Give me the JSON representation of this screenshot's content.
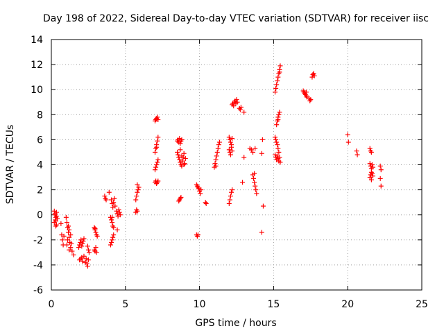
{
  "chart_data": {
    "type": "scatter",
    "title": "Day 198 of 2022, Sidereal Day-to-day VTEC variation (SDTVAR) for receiver iisc",
    "xlabel": "GPS time / hours",
    "ylabel": "SDTVAR / TECUs",
    "xlim": [
      0,
      25
    ],
    "ylim": [
      -6,
      14
    ],
    "xticks": [
      0,
      5,
      10,
      15,
      20,
      25
    ],
    "yticks": [
      -6,
      -4,
      -2,
      0,
      2,
      4,
      6,
      8,
      10,
      12,
      14
    ],
    "grid": true,
    "marker": "+",
    "color": "#ff0000",
    "series": [
      {
        "name": "SDTVAR",
        "points": [
          [
            0.2,
            0.3
          ],
          [
            0.25,
            0.1
          ],
          [
            0.3,
            -0.2
          ],
          [
            0.3,
            -0.5
          ],
          [
            0.35,
            -0.8
          ],
          [
            0.2,
            -0.6
          ],
          [
            0.25,
            0.0
          ],
          [
            0.35,
            0.2
          ],
          [
            0.4,
            -0.3
          ],
          [
            0.3,
            -0.9
          ],
          [
            0.35,
            -0.1
          ],
          [
            0.28,
            -0.4
          ],
          [
            0.65,
            -0.7
          ],
          [
            0.7,
            -1.6
          ],
          [
            0.75,
            -2.0
          ],
          [
            0.8,
            -2.4
          ],
          [
            0.85,
            -1.7
          ],
          [
            1.0,
            -0.2
          ],
          [
            1.05,
            -0.6
          ],
          [
            1.1,
            -1.0
          ],
          [
            1.15,
            -1.4
          ],
          [
            1.2,
            -1.8
          ],
          [
            1.25,
            -2.2
          ],
          [
            1.3,
            -2.6
          ],
          [
            1.1,
            -2.0
          ],
          [
            1.2,
            -1.2
          ],
          [
            1.15,
            -0.9
          ],
          [
            1.3,
            -1.6
          ],
          [
            1.05,
            -2.4
          ],
          [
            1.2,
            -2.8
          ],
          [
            1.4,
            -2.9
          ],
          [
            1.5,
            -3.2
          ],
          [
            1.35,
            -2.3
          ],
          [
            1.85,
            -2.6
          ],
          [
            1.9,
            -2.4
          ],
          [
            1.95,
            -2.2
          ],
          [
            2.0,
            -2.0
          ],
          [
            2.1,
            -2.3
          ],
          [
            2.15,
            -2.1
          ],
          [
            2.2,
            -1.9
          ],
          [
            2.05,
            -2.5
          ],
          [
            1.9,
            -3.6
          ],
          [
            2.0,
            -3.5
          ],
          [
            2.05,
            -3.4
          ],
          [
            2.1,
            -3.7
          ],
          [
            2.2,
            -3.3
          ],
          [
            2.3,
            -3.8
          ],
          [
            2.4,
            -3.9
          ],
          [
            2.45,
            -4.1
          ],
          [
            2.5,
            -3.6
          ],
          [
            2.35,
            -3.5
          ],
          [
            2.45,
            -2.5
          ],
          [
            2.5,
            -2.8
          ],
          [
            2.55,
            -3.0
          ],
          [
            2.9,
            -2.8
          ],
          [
            2.95,
            -2.9
          ],
          [
            3.0,
            -2.6
          ],
          [
            3.05,
            -3.0
          ],
          [
            2.9,
            -1.0
          ],
          [
            2.95,
            -1.2
          ],
          [
            3.0,
            -1.4
          ],
          [
            3.05,
            -1.6
          ],
          [
            3.1,
            -1.7
          ],
          [
            2.95,
            -1.1
          ],
          [
            3.6,
            1.5
          ],
          [
            3.65,
            1.3
          ],
          [
            3.7,
            1.2
          ],
          [
            3.9,
            1.8
          ],
          [
            4.05,
            1.2
          ],
          [
            4.1,
            0.9
          ],
          [
            4.15,
            0.6
          ],
          [
            4.2,
            1.0
          ],
          [
            4.25,
            1.3
          ],
          [
            4.3,
            0.7
          ],
          [
            4.0,
            -0.2
          ],
          [
            4.05,
            -0.4
          ],
          [
            4.1,
            -0.6
          ],
          [
            4.15,
            -0.9
          ],
          [
            4.2,
            -1.0
          ],
          [
            4.1,
            -0.2
          ],
          [
            4.0,
            -2.4
          ],
          [
            4.05,
            -2.2
          ],
          [
            4.1,
            -2.0
          ],
          [
            4.15,
            -1.8
          ],
          [
            4.2,
            -1.6
          ],
          [
            4.4,
            0.3
          ],
          [
            4.45,
            0.1
          ],
          [
            4.5,
            -0.1
          ],
          [
            4.55,
            0.4
          ],
          [
            4.6,
            0.2
          ],
          [
            4.65,
            0.0
          ],
          [
            4.45,
            -1.2
          ],
          [
            5.7,
            0.2
          ],
          [
            5.75,
            0.4
          ],
          [
            5.8,
            0.3
          ],
          [
            5.7,
            1.2
          ],
          [
            5.75,
            1.5
          ],
          [
            5.8,
            1.8
          ],
          [
            5.85,
            2.0
          ],
          [
            5.9,
            2.2
          ],
          [
            5.8,
            2.4
          ],
          [
            7.0,
            2.6
          ],
          [
            7.05,
            2.7
          ],
          [
            7.1,
            2.5
          ],
          [
            7.15,
            2.6
          ],
          [
            7.2,
            2.7
          ],
          [
            7.0,
            3.6
          ],
          [
            7.05,
            3.8
          ],
          [
            7.1,
            4.0
          ],
          [
            7.15,
            4.2
          ],
          [
            7.2,
            4.4
          ],
          [
            7.0,
            5.0
          ],
          [
            7.05,
            5.3
          ],
          [
            7.1,
            5.6
          ],
          [
            7.15,
            5.9
          ],
          [
            7.2,
            6.2
          ],
          [
            7.1,
            5.4
          ],
          [
            7.0,
            7.5
          ],
          [
            7.05,
            7.6
          ],
          [
            7.1,
            7.7
          ],
          [
            7.15,
            7.8
          ],
          [
            7.2,
            7.6
          ],
          [
            8.5,
            5.9
          ],
          [
            8.55,
            6.0
          ],
          [
            8.6,
            5.8
          ],
          [
            8.65,
            6.1
          ],
          [
            8.7,
            5.7
          ],
          [
            8.75,
            5.9
          ],
          [
            8.8,
            6.0
          ],
          [
            8.5,
            5.0
          ],
          [
            8.55,
            4.8
          ],
          [
            8.6,
            4.6
          ],
          [
            8.65,
            4.4
          ],
          [
            8.7,
            4.2
          ],
          [
            8.75,
            4.0
          ],
          [
            8.8,
            3.9
          ],
          [
            8.85,
            4.3
          ],
          [
            8.9,
            4.6
          ],
          [
            8.95,
            4.9
          ],
          [
            9.0,
            4.1
          ],
          [
            9.05,
            4.5
          ],
          [
            8.7,
            5.2
          ],
          [
            8.8,
            4.7
          ],
          [
            8.95,
            4.0
          ],
          [
            8.6,
            1.1
          ],
          [
            8.65,
            1.2
          ],
          [
            8.7,
            1.3
          ],
          [
            8.75,
            1.4
          ],
          [
            9.8,
            2.4
          ],
          [
            9.85,
            2.3
          ],
          [
            9.9,
            2.2
          ],
          [
            9.95,
            2.1
          ],
          [
            10.0,
            1.9
          ],
          [
            10.05,
            1.7
          ],
          [
            10.1,
            2.0
          ],
          [
            9.8,
            -1.6
          ],
          [
            9.85,
            -1.7
          ],
          [
            9.9,
            -1.6
          ],
          [
            10.4,
            1.0
          ],
          [
            10.45,
            0.9
          ],
          [
            11.0,
            3.8
          ],
          [
            11.05,
            4.1
          ],
          [
            11.1,
            4.4
          ],
          [
            11.15,
            4.7
          ],
          [
            11.2,
            5.0
          ],
          [
            11.25,
            5.3
          ],
          [
            11.3,
            5.6
          ],
          [
            11.35,
            5.8
          ],
          [
            11.1,
            3.9
          ],
          [
            12.0,
            6.2
          ],
          [
            12.05,
            6.0
          ],
          [
            12.1,
            5.8
          ],
          [
            12.15,
            5.6
          ],
          [
            12.2,
            6.1
          ],
          [
            12.0,
            5.2
          ],
          [
            12.05,
            5.0
          ],
          [
            12.1,
            4.8
          ],
          [
            12.15,
            5.4
          ],
          [
            12.2,
            5.1
          ],
          [
            12.0,
            0.9
          ],
          [
            12.05,
            1.2
          ],
          [
            12.1,
            1.5
          ],
          [
            12.15,
            1.8
          ],
          [
            12.2,
            2.0
          ],
          [
            12.2,
            8.8
          ],
          [
            12.25,
            8.9
          ],
          [
            12.3,
            8.7
          ],
          [
            12.35,
            9.0
          ],
          [
            12.4,
            9.1
          ],
          [
            12.45,
            8.9
          ],
          [
            12.5,
            9.2
          ],
          [
            12.55,
            9.0
          ],
          [
            12.7,
            8.5
          ],
          [
            12.75,
            8.4
          ],
          [
            12.8,
            8.6
          ],
          [
            13.0,
            8.2
          ],
          [
            12.9,
            2.6
          ],
          [
            13.0,
            4.6
          ],
          [
            13.4,
            5.3
          ],
          [
            13.5,
            5.2
          ],
          [
            13.6,
            3.2
          ],
          [
            13.65,
            2.9
          ],
          [
            13.7,
            2.6
          ],
          [
            13.75,
            2.3
          ],
          [
            13.8,
            2.0
          ],
          [
            13.85,
            1.7
          ],
          [
            13.7,
            3.3
          ],
          [
            13.6,
            5.0
          ],
          [
            13.75,
            5.3
          ],
          [
            14.2,
            4.9
          ],
          [
            14.25,
            6.0
          ],
          [
            14.3,
            0.7
          ],
          [
            14.2,
            -1.4
          ],
          [
            15.1,
            9.8
          ],
          [
            15.15,
            10.1
          ],
          [
            15.2,
            10.4
          ],
          [
            15.25,
            10.7
          ],
          [
            15.3,
            11.0
          ],
          [
            15.35,
            11.3
          ],
          [
            15.4,
            11.6
          ],
          [
            15.45,
            11.9
          ],
          [
            15.4,
            11.4
          ],
          [
            15.1,
            6.2
          ],
          [
            15.15,
            6.0
          ],
          [
            15.2,
            5.8
          ],
          [
            15.25,
            5.6
          ],
          [
            15.3,
            5.3
          ],
          [
            15.35,
            5.0
          ],
          [
            15.1,
            4.8
          ],
          [
            15.15,
            4.6
          ],
          [
            15.2,
            4.4
          ],
          [
            15.25,
            4.7
          ],
          [
            15.3,
            4.5
          ],
          [
            15.35,
            4.3
          ],
          [
            15.4,
            4.6
          ],
          [
            15.45,
            4.2
          ],
          [
            15.2,
            7.2
          ],
          [
            15.25,
            7.5
          ],
          [
            15.3,
            7.8
          ],
          [
            15.35,
            8.0
          ],
          [
            15.4,
            8.2
          ],
          [
            15.3,
            7.6
          ],
          [
            17.0,
            9.9
          ],
          [
            17.05,
            9.8
          ],
          [
            17.1,
            9.7
          ],
          [
            17.15,
            9.6
          ],
          [
            17.2,
            9.5
          ],
          [
            17.25,
            9.4
          ],
          [
            17.2,
            9.8
          ],
          [
            17.4,
            9.3
          ],
          [
            17.45,
            9.1
          ],
          [
            17.5,
            9.2
          ],
          [
            17.6,
            11.0
          ],
          [
            17.65,
            11.2
          ],
          [
            17.7,
            11.3
          ],
          [
            17.75,
            11.1
          ],
          [
            20.0,
            6.4
          ],
          [
            20.05,
            5.8
          ],
          [
            20.6,
            5.1
          ],
          [
            20.65,
            4.8
          ],
          [
            21.5,
            5.3
          ],
          [
            21.55,
            5.1
          ],
          [
            21.6,
            5.0
          ],
          [
            21.5,
            4.1
          ],
          [
            21.55,
            3.9
          ],
          [
            21.6,
            3.7
          ],
          [
            21.65,
            4.0
          ],
          [
            21.7,
            3.8
          ],
          [
            21.6,
            3.4
          ],
          [
            21.55,
            3.2
          ],
          [
            21.5,
            3.0
          ],
          [
            21.6,
            2.8
          ],
          [
            21.65,
            3.3
          ],
          [
            21.7,
            3.1
          ],
          [
            22.2,
            3.9
          ],
          [
            22.25,
            3.6
          ],
          [
            22.2,
            2.9
          ],
          [
            22.25,
            2.3
          ]
        ]
      }
    ]
  }
}
